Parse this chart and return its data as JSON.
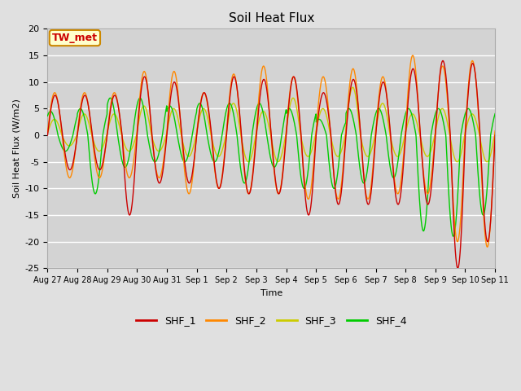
{
  "title": "Soil Heat Flux",
  "ylabel": "Soil Heat Flux (W/m2)",
  "xlabel": "Time",
  "ylim": [
    -25,
    20
  ],
  "yticks": [
    -25,
    -20,
    -15,
    -10,
    -5,
    0,
    5,
    10,
    15,
    20
  ],
  "bg_color": "#e0e0e0",
  "plot_bg_color": "#d3d3d3",
  "grid_color": "#ffffff",
  "series_colors": {
    "SHF_1": "#cc0000",
    "SHF_2": "#ff8800",
    "SHF_3": "#cccc00",
    "SHF_4": "#00cc00"
  },
  "annotation_text": "TW_met",
  "annotation_color": "#cc0000",
  "annotation_bg": "#ffffcc",
  "annotation_border": "#cc8800",
  "n_days": 15,
  "points_per_day": 144,
  "phase_shf1": 0.0,
  "phase_shf2": 0.01,
  "phase_shf3": 0.02,
  "phase_shf4": 0.15,
  "pos_amps_shf1": [
    7.5,
    7.5,
    7.5,
    11,
    10,
    8,
    11,
    10.5,
    11,
    8,
    10.5,
    10,
    12.5,
    14,
    13.5,
    13
  ],
  "neg_amps_shf1": [
    6.5,
    6.5,
    15,
    9,
    9,
    10,
    11,
    11,
    15,
    13,
    13,
    13,
    13,
    25,
    20,
    16
  ],
  "pos_amps_shf2": [
    8,
    8,
    8,
    12,
    12,
    8,
    11.5,
    13,
    11,
    11,
    12.5,
    11,
    15,
    13,
    14,
    13
  ],
  "neg_amps_shf2": [
    8,
    8,
    8,
    8,
    11,
    10,
    11,
    11,
    12,
    12,
    12,
    11,
    11,
    20,
    21,
    16
  ],
  "pos_amps_shf3": [
    3,
    4,
    4,
    5.5,
    5,
    5,
    6,
    4.5,
    7,
    5,
    9,
    6,
    4,
    5,
    4,
    4
  ],
  "neg_amps_shf3": [
    2,
    3,
    3,
    3,
    4,
    4,
    5,
    5,
    4,
    4,
    4,
    4,
    4,
    5,
    5,
    5
  ],
  "pos_amps_shf4": [
    4.5,
    5,
    7,
    7,
    5.5,
    6,
    6,
    6,
    5,
    3,
    5,
    5,
    5,
    5,
    5,
    5
  ],
  "neg_amps_shf4": [
    3,
    11,
    6,
    5,
    5,
    5,
    9,
    6,
    10,
    10,
    9,
    8,
    18,
    19,
    15,
    13
  ]
}
